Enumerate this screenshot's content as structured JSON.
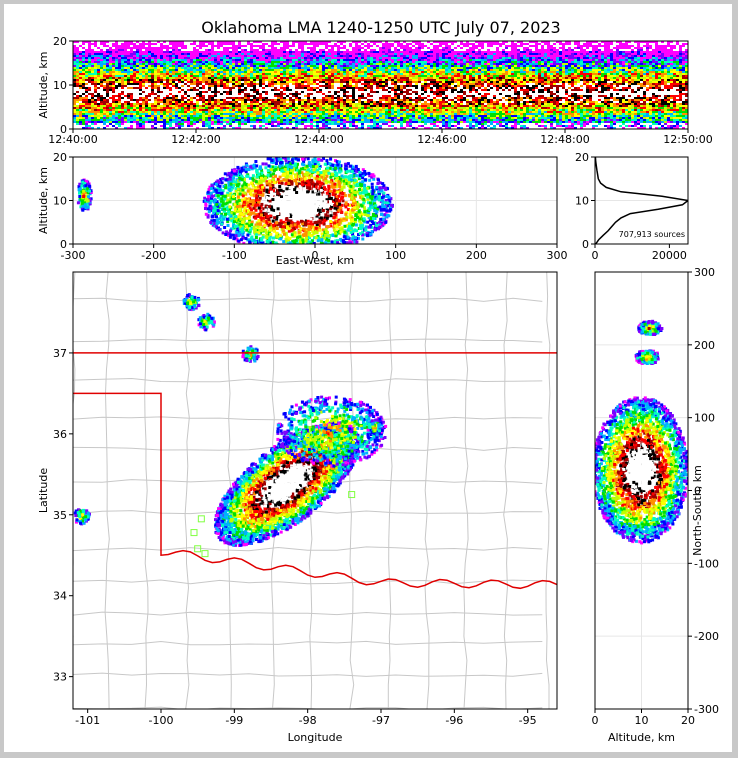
{
  "title": "Oklahoma LMA 1240-1250 UTC July 07, 2023",
  "colors": {
    "state_border": "#e00000",
    "county_border": "#c8c8c8",
    "ramp": [
      "#ff00ff",
      "#7a00ff",
      "#0000ff",
      "#00b0ff",
      "#00ffc0",
      "#00e000",
      "#c0ff00",
      "#ffff00",
      "#ff9000",
      "#ff0000",
      "#a00000",
      "#000000",
      "#ffffff"
    ],
    "station": "#80ff40"
  },
  "chart_data": [
    {
      "id": "time_height",
      "type": "heatmap",
      "ylabel": "Altitude, km",
      "xlabel": "",
      "x_ticks": [
        "12:40:00",
        "12:42:00",
        "12:44:00",
        "12:46:00",
        "12:48:00",
        "12:50:00"
      ],
      "x_range_minutes": [
        0,
        10
      ],
      "y_ticks": [
        0,
        10,
        20
      ],
      "ylim": [
        0,
        20
      ],
      "description_values": {
        "core_altitude_km": [
          5,
          12
        ],
        "max_altitude_km": 20
      }
    },
    {
      "id": "east_west_altitude",
      "type": "heatmap",
      "xlabel": "East-West, km",
      "ylabel": "Altitude, km",
      "x_ticks": [
        -300,
        -200,
        -100,
        0,
        100,
        200,
        300
      ],
      "xlim": [
        -300,
        300
      ],
      "y_ticks": [
        0,
        10,
        20
      ],
      "ylim": [
        0,
        20
      ],
      "clusters": [
        {
          "x": [
            -140,
            95
          ],
          "y": [
            0,
            20
          ],
          "core_x": [
            -110,
            40
          ],
          "core_y": [
            5,
            12
          ]
        },
        {
          "x": [
            -295,
            -280
          ],
          "y": [
            7,
            16
          ]
        }
      ]
    },
    {
      "id": "altitude_histogram",
      "type": "line",
      "x_ticks": [
        0,
        20000
      ],
      "xlim": [
        0,
        25000
      ],
      "y_ticks": [
        0,
        10,
        20
      ],
      "ylim": [
        0,
        20
      ],
      "annotation": "707,913 sources",
      "altitude_km": [
        0,
        1,
        2,
        3,
        4,
        5,
        6,
        7,
        8,
        9,
        10,
        11,
        12,
        13,
        14,
        15,
        16,
        17,
        18,
        19,
        20
      ],
      "counts": [
        200,
        1000,
        2200,
        3500,
        4500,
        5500,
        7000,
        9500,
        17000,
        23500,
        25000,
        18000,
        7000,
        3000,
        1500,
        900,
        700,
        500,
        350,
        200,
        100
      ]
    },
    {
      "id": "plan_view",
      "type": "heatmap",
      "xlabel": "Longitude",
      "ylabel": "Latitude",
      "x_ticks": [
        -101,
        -100,
        -99,
        -98,
        -97,
        -96,
        -95
      ],
      "xlim": [
        -101.2,
        -94.6
      ],
      "y_ticks": [
        33,
        34,
        35,
        36,
        37
      ],
      "ylim": [
        32.6,
        38.0
      ],
      "storm_line": {
        "from": [
          -99.0,
          34.9
        ],
        "to": [
          -97.6,
          35.9
        ]
      },
      "clusters": [
        {
          "lon": -99.4,
          "lat": 37.4
        },
        {
          "lon": -98.8,
          "lat": 37.0
        },
        {
          "lon": -99.6,
          "lat": 37.65
        },
        {
          "lon": -101.1,
          "lat": 35.0
        },
        {
          "lon": -97.1,
          "lat": 36.1
        }
      ],
      "stations": [
        [
          -99.45,
          34.95
        ],
        [
          -99.55,
          34.78
        ],
        [
          -99.5,
          34.58
        ],
        [
          -99.4,
          34.52
        ],
        [
          -97.4,
          35.25
        ]
      ]
    },
    {
      "id": "north_south_altitude",
      "type": "heatmap",
      "xlabel": "Altitude, km",
      "ylabel": "North-South, km",
      "x_ticks": [
        0,
        10,
        20
      ],
      "xlim": [
        0,
        20
      ],
      "y_ticks": [
        -300,
        -200,
        -100,
        0,
        100,
        200,
        300
      ],
      "ylim": [
        -300,
        300
      ],
      "clusters": [
        {
          "y": [
            -70,
            130
          ],
          "x": [
            0,
            20
          ],
          "core_y": [
            -50,
            80
          ],
          "core_x": [
            5,
            14
          ]
        },
        {
          "y": [
            170,
            200
          ],
          "x": [
            8,
            14
          ]
        },
        {
          "y": [
            215,
            235
          ],
          "x": [
            8,
            15
          ]
        }
      ]
    }
  ]
}
